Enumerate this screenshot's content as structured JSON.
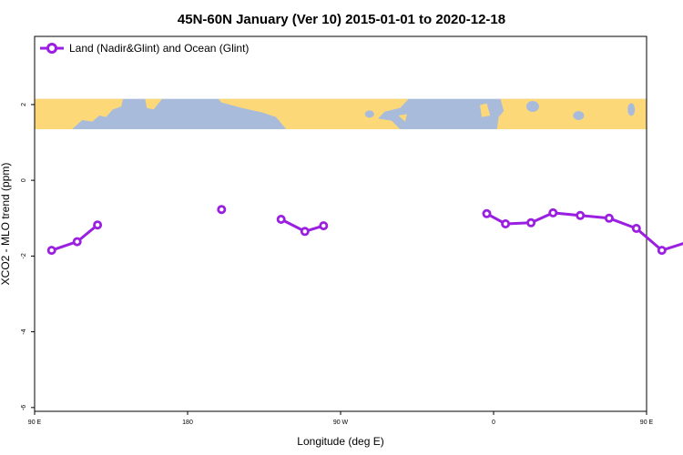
{
  "chart_data": {
    "type": "line",
    "title": "45N-60N January (Ver 10)   2015-01-01 to 2020-12-18",
    "xlabel": "Longitude (deg E)",
    "ylabel": "XCO2 - MLO trend (ppm)",
    "xlim": [
      90,
      450
    ],
    "ylim": [
      -6.1,
      3.8
    ],
    "x_ticks": [
      {
        "value": 90,
        "label": "90 E"
      },
      {
        "value": 180,
        "label": "180"
      },
      {
        "value": 270,
        "label": "90 W"
      },
      {
        "value": 360,
        "label": "0"
      },
      {
        "value": 450,
        "label": "90 E"
      },
      {
        "value": 540,
        "label": "180"
      }
    ],
    "y_ticks": [
      {
        "value": 2,
        "label": "2"
      },
      {
        "value": 0,
        "label": "0"
      },
      {
        "value": -2,
        "label": "-2"
      },
      {
        "value": -4,
        "label": "-4"
      },
      {
        "value": -6,
        "label": "-6"
      }
    ],
    "legend_position": "top-left",
    "map_strip": {
      "y_range": [
        1.35,
        2.15
      ],
      "ocean_color": "#a8bbdb",
      "land_color": "#fdd878"
    },
    "series": [
      {
        "name": "Land (Nadir&Glint) and Ocean (Glint)",
        "color": "#9a1fe0",
        "segments": [
          [
            {
              "x": 100,
              "y": -1.85
            },
            {
              "x": 115,
              "y": -1.62
            },
            {
              "x": 127,
              "y": -1.18
            }
          ],
          [
            {
              "x": 200,
              "y": -0.77
            }
          ],
          [
            {
              "x": 235,
              "y": -1.03
            },
            {
              "x": 249,
              "y": -1.35
            },
            {
              "x": 260,
              "y": -1.2
            }
          ],
          [
            {
              "x": 356,
              "y": -0.88
            },
            {
              "x": 367,
              "y": -1.15
            },
            {
              "x": 382,
              "y": -1.12
            },
            {
              "x": 395,
              "y": -0.86
            },
            {
              "x": 411,
              "y": -0.93
            },
            {
              "x": 428,
              "y": -1.0
            },
            {
              "x": 444,
              "y": -1.27
            },
            {
              "x": 459,
              "y": -1.85
            },
            {
              "x": 475,
              "y": -1.62
            },
            {
              "x": 487,
              "y": -1.18
            }
          ]
        ]
      }
    ]
  }
}
